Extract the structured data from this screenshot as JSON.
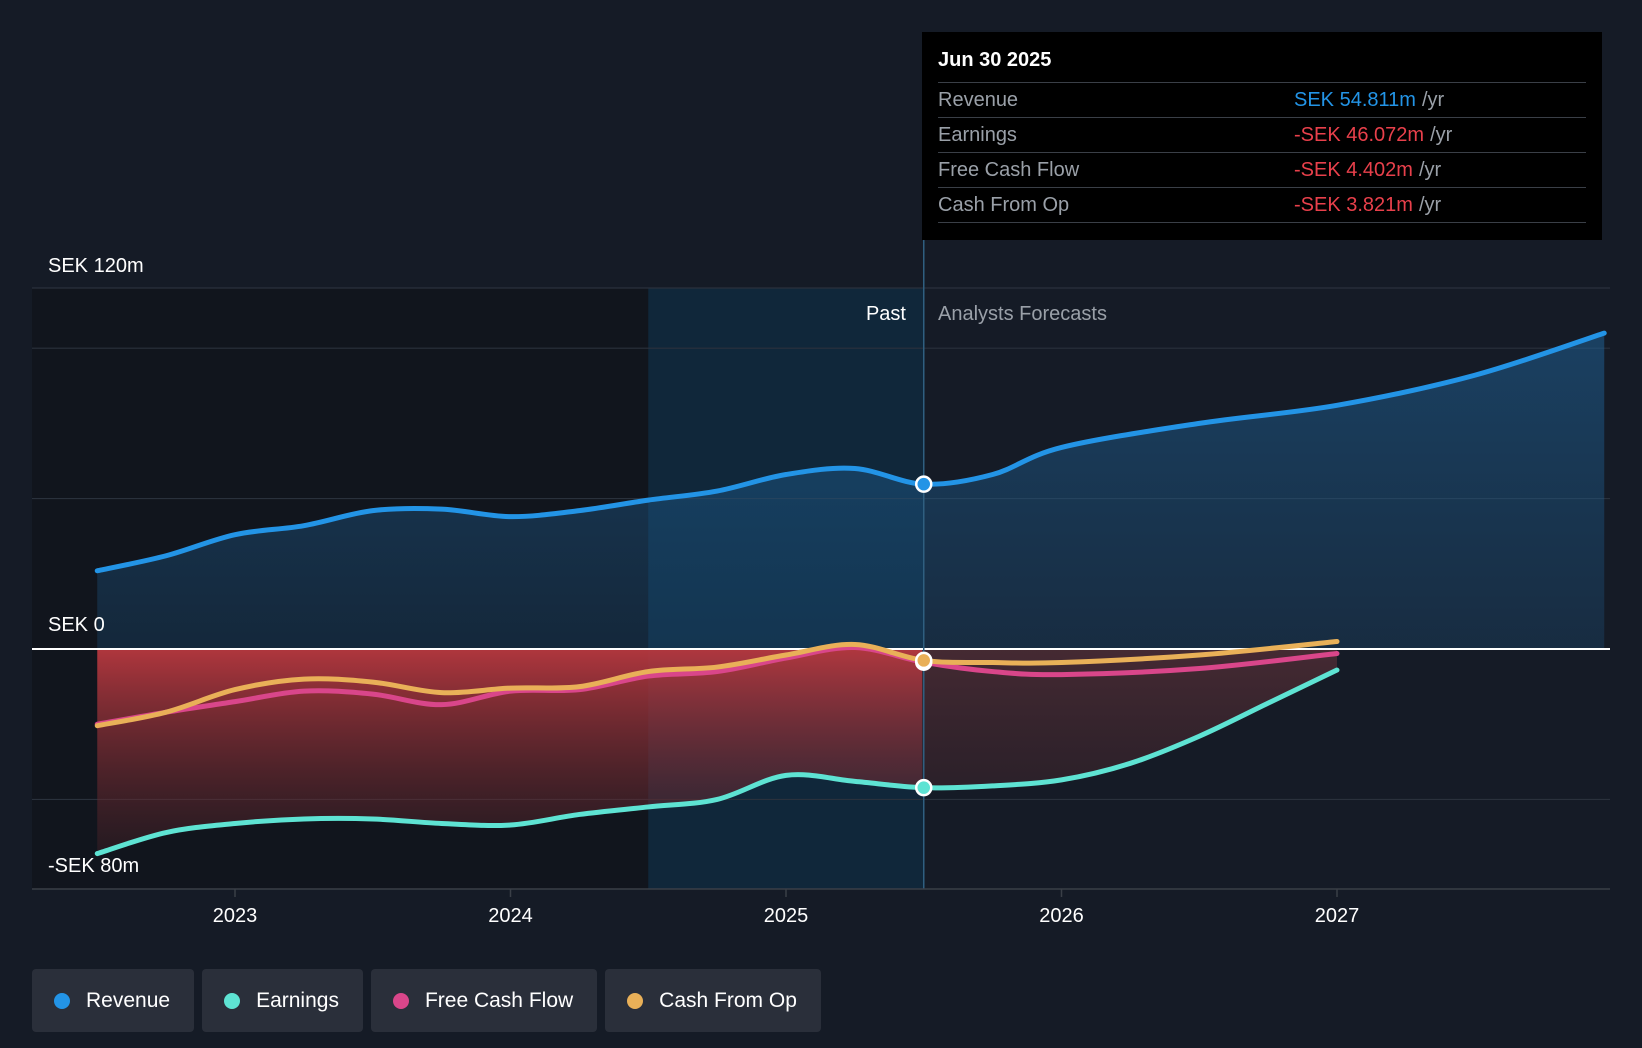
{
  "chart_data": {
    "type": "area",
    "y_axis": {
      "unit": "SEK m",
      "ylim": [
        -80,
        120
      ],
      "labels": [
        "SEK 120m",
        "SEK 0",
        "-SEK 80m"
      ],
      "gridlines": [
        100,
        50,
        0,
        -50
      ]
    },
    "x_axis": {
      "ticks": [
        "2023",
        "2024",
        "2025",
        "2026",
        "2027"
      ],
      "range": [
        2022.5,
        2027.97
      ]
    },
    "divider": 2025.5,
    "regions": {
      "past": "Past",
      "forecast": "Analysts Forecasts",
      "highlight_start": 2024.5
    },
    "series": [
      {
        "name": "Revenue",
        "color": "#2394e6",
        "x": [
          2022.5,
          2022.75,
          2023.0,
          2023.25,
          2023.5,
          2023.75,
          2024.0,
          2024.25,
          2024.5,
          2024.75,
          2025.0,
          2025.25,
          2025.5,
          2025.75,
          2026.0,
          2026.5,
          2027.0,
          2027.5,
          2027.97
        ],
        "y": [
          26,
          31,
          38,
          41,
          46,
          46.5,
          44,
          46,
          49.5,
          52.5,
          58,
          60,
          54.8,
          58,
          67,
          75,
          81,
          91,
          105
        ]
      },
      {
        "name": "Earnings",
        "color": "#5ee3d3",
        "x": [
          2022.5,
          2022.75,
          2023.0,
          2023.25,
          2023.5,
          2023.75,
          2024.0,
          2024.25,
          2024.5,
          2024.75,
          2025.0,
          2025.25,
          2025.5,
          2025.75,
          2026.0,
          2026.25,
          2026.5,
          2026.75,
          2027.0
        ],
        "y": [
          -68,
          -61,
          -58,
          -56.5,
          -56.5,
          -58,
          -58.5,
          -55,
          -52.5,
          -50,
          -42,
          -44,
          -46.1,
          -45.5,
          -43.5,
          -38,
          -29,
          -18,
          -7
        ]
      },
      {
        "name": "Free Cash Flow",
        "color": "#d9468a",
        "x": [
          2022.5,
          2022.75,
          2023.0,
          2023.25,
          2023.5,
          2023.75,
          2024.0,
          2024.25,
          2024.5,
          2024.75,
          2025.0,
          2025.25,
          2025.5,
          2025.75,
          2026.0,
          2026.5,
          2027.0
        ],
        "y": [
          -25,
          -21,
          -17.5,
          -14,
          -15,
          -18.5,
          -14,
          -13.5,
          -9,
          -7.5,
          -3,
          0.5,
          -4.4,
          -7.5,
          -8.5,
          -6.5,
          -1.5
        ]
      },
      {
        "name": "Cash From Op",
        "color": "#e9b058",
        "x": [
          2022.5,
          2022.75,
          2023.0,
          2023.25,
          2023.5,
          2023.75,
          2024.0,
          2024.25,
          2024.5,
          2024.75,
          2025.0,
          2025.25,
          2025.5,
          2025.75,
          2026.0,
          2026.5,
          2027.0
        ],
        "y": [
          -25.5,
          -21,
          -13.5,
          -10,
          -11,
          -14.5,
          -13,
          -12.5,
          -7.5,
          -6,
          -2,
          1.5,
          -3.8,
          -4.5,
          -4.5,
          -2,
          2.5
        ]
      }
    ],
    "highlight_point_x": 2025.5
  },
  "tooltip": {
    "date": "Jun 30 2025",
    "rows": [
      {
        "label": "Revenue",
        "value": "SEK 54.811m",
        "unit": "/yr",
        "color": "#2394e6"
      },
      {
        "label": "Earnings",
        "value": "-SEK 46.072m",
        "unit": "/yr",
        "color": "#e8404b"
      },
      {
        "label": "Free Cash Flow",
        "value": "-SEK 4.402m",
        "unit": "/yr",
        "color": "#e8404b"
      },
      {
        "label": "Cash From Op",
        "value": "-SEK 3.821m",
        "unit": "/yr",
        "color": "#e8404b"
      }
    ]
  },
  "legend": [
    {
      "label": "Revenue",
      "color": "#2394e6"
    },
    {
      "label": "Earnings",
      "color": "#5ee3d3"
    },
    {
      "label": "Free Cash Flow",
      "color": "#d9468a"
    },
    {
      "label": "Cash From Op",
      "color": "#e9b058"
    }
  ]
}
